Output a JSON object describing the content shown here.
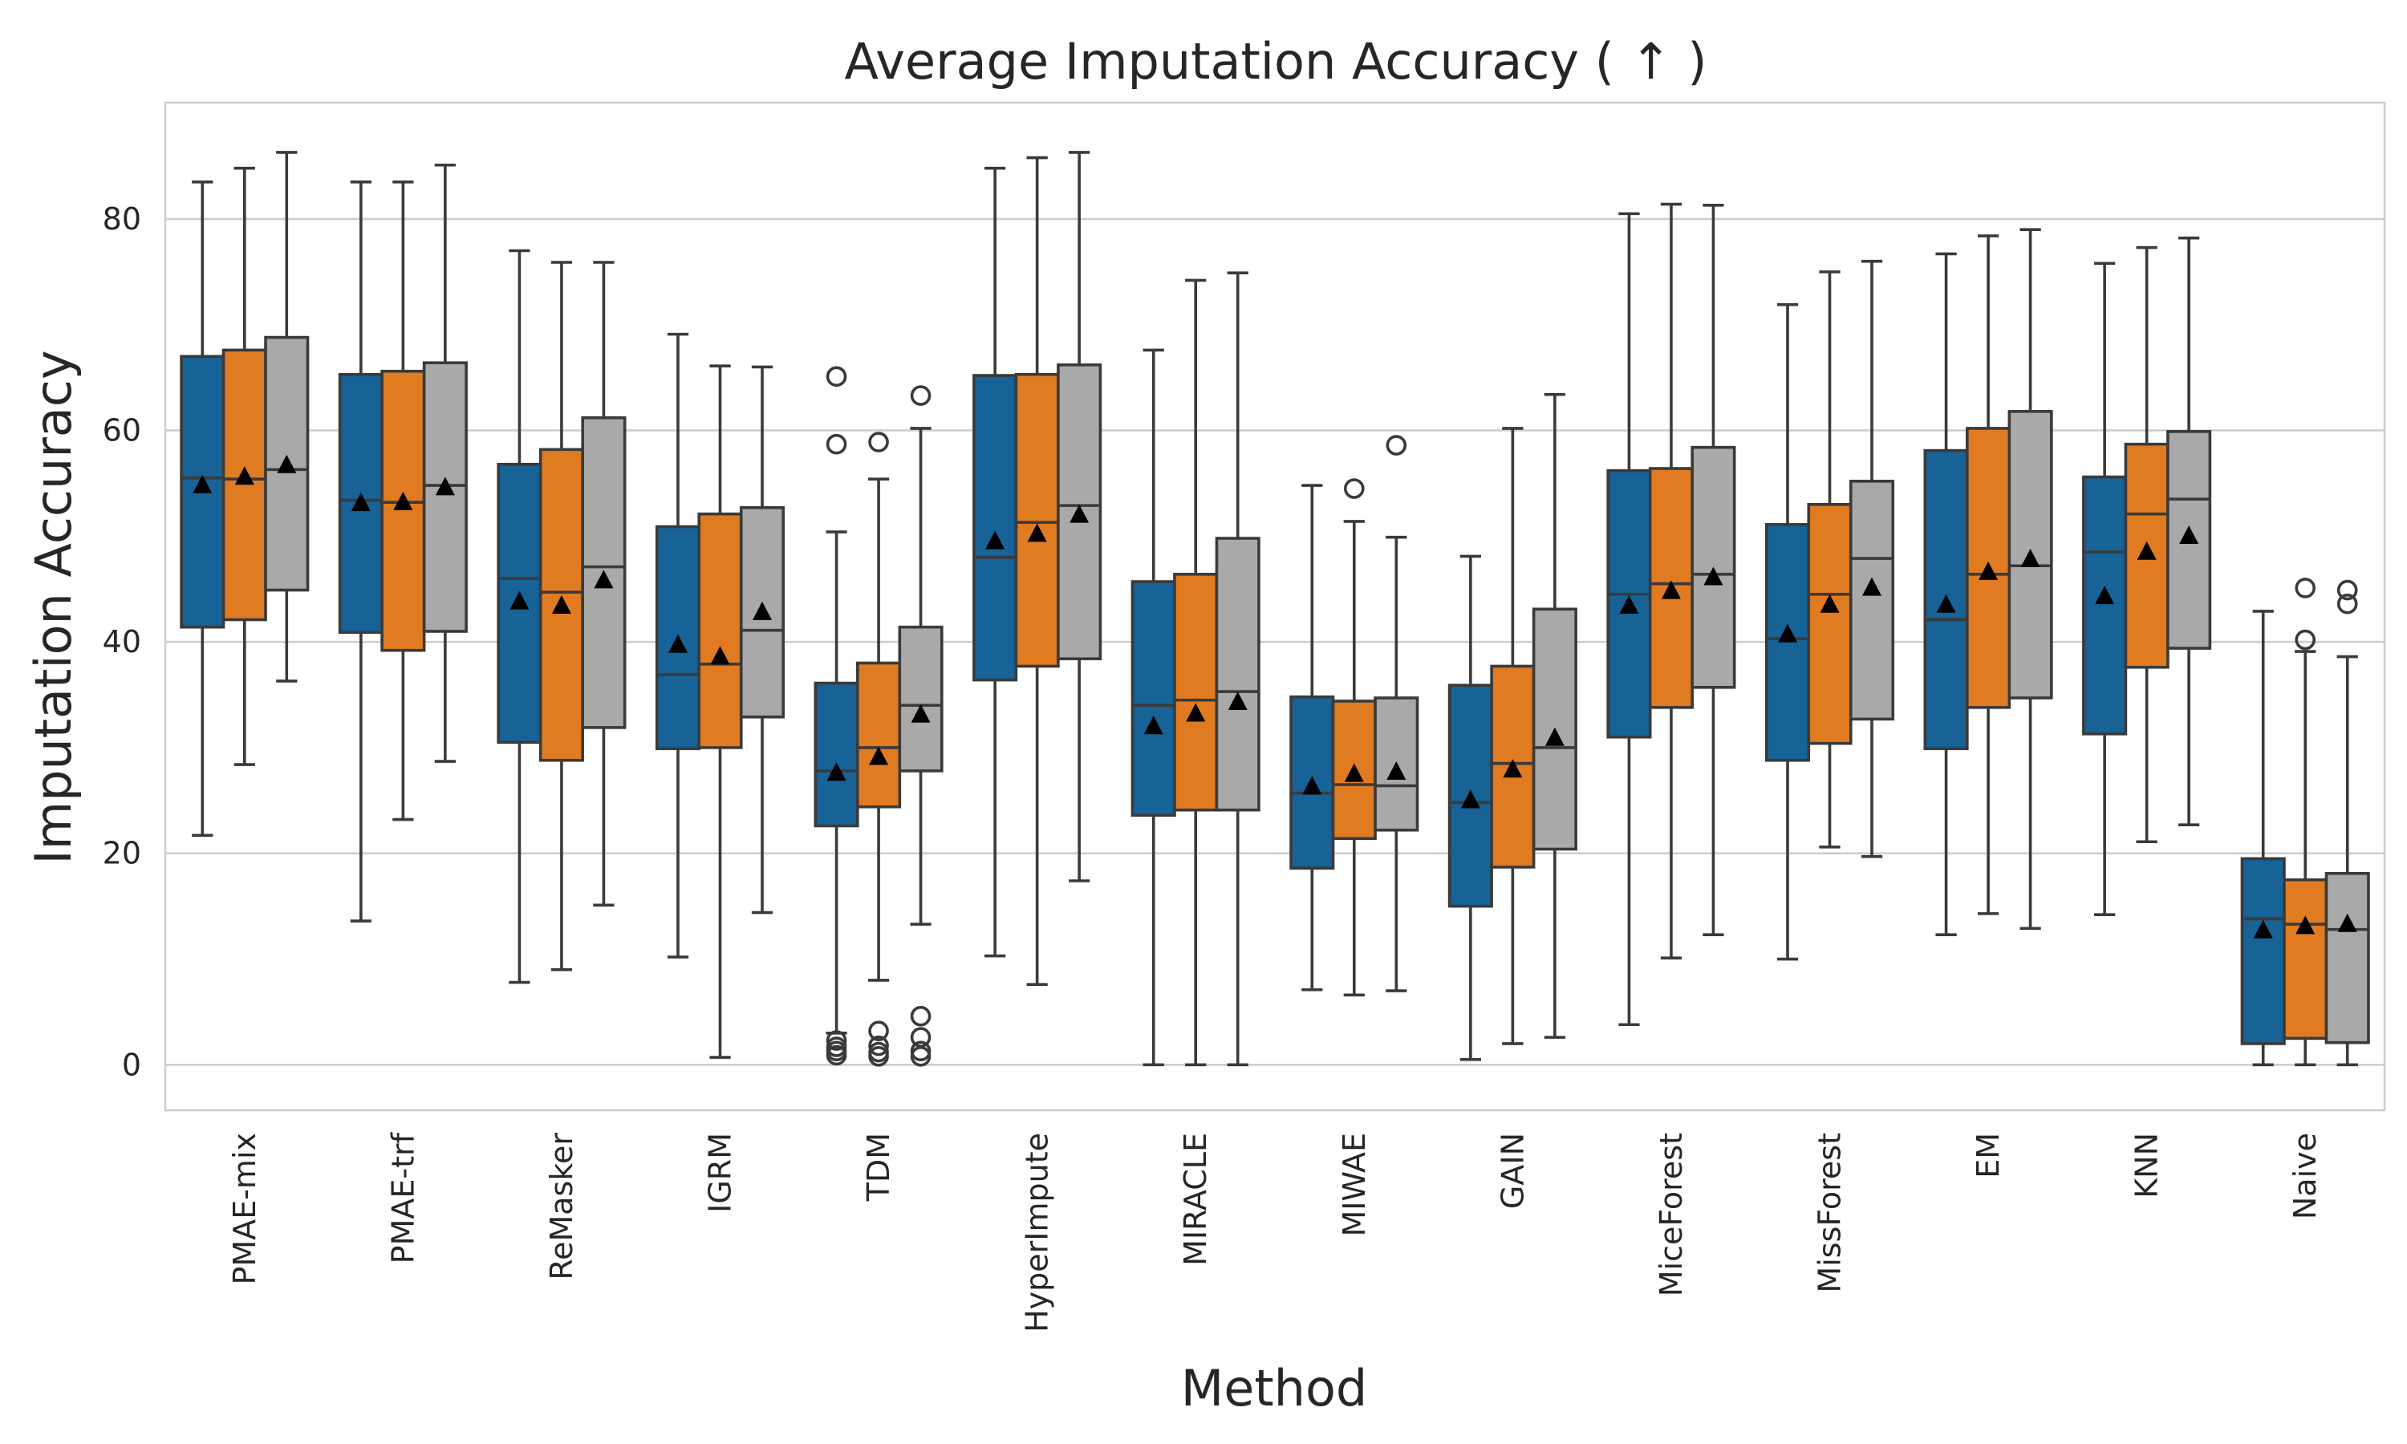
{
  "chart_data": {
    "type": "box",
    "title": "Average Imputation Accuracy ( ↑ )",
    "xlabel": "Method",
    "ylabel": "Imputation Accuracy",
    "ylim": [
      -4.3,
      91
    ],
    "yticks": [
      0,
      20,
      40,
      60,
      80
    ],
    "grid": true,
    "legend": "none",
    "series_colors": [
      "#176296",
      "#e07b22",
      "#a9a9a9"
    ],
    "categories": [
      "PMAE-mix",
      "PMAE-trf",
      "ReMasker",
      "IGRM",
      "TDM",
      "HyperImpute",
      "MIRACLE",
      "MIWAE",
      "GAIN",
      "MiceForest",
      "MissForest",
      "EM",
      "KNN",
      "Naive"
    ],
    "groups": [
      {
        "label": "PMAE-mix",
        "boxes": [
          {
            "whislo": 21.7,
            "q1": 41.4,
            "med": 55.5,
            "q3": 67.0,
            "whishi": 83.5,
            "mean": 54.9,
            "fliers": []
          },
          {
            "whislo": 28.4,
            "q1": 42.1,
            "med": 55.4,
            "q3": 67.6,
            "whishi": 84.8,
            "mean": 55.7,
            "fliers": []
          },
          {
            "whislo": 36.3,
            "q1": 44.9,
            "med": 56.3,
            "q3": 68.8,
            "whishi": 86.3,
            "mean": 56.8,
            "fliers": []
          }
        ]
      },
      {
        "label": "PMAE-trf",
        "boxes": [
          {
            "whislo": 13.6,
            "q1": 40.9,
            "med": 53.4,
            "q3": 65.3,
            "whishi": 83.5,
            "mean": 53.2,
            "fliers": []
          },
          {
            "whislo": 23.2,
            "q1": 39.2,
            "med": 53.2,
            "q3": 65.6,
            "whishi": 83.5,
            "mean": 53.3,
            "fliers": []
          },
          {
            "whislo": 28.7,
            "q1": 41.0,
            "med": 54.8,
            "q3": 66.4,
            "whishi": 85.1,
            "mean": 54.7,
            "fliers": []
          }
        ]
      },
      {
        "label": "ReMasker",
        "boxes": [
          {
            "whislo": 7.8,
            "q1": 30.5,
            "med": 46.0,
            "q3": 56.8,
            "whishi": 77.0,
            "mean": 43.9,
            "fliers": []
          },
          {
            "whislo": 9.0,
            "q1": 28.8,
            "med": 44.7,
            "q3": 58.2,
            "whishi": 75.9,
            "mean": 43.5,
            "fliers": []
          },
          {
            "whislo": 15.1,
            "q1": 31.9,
            "med": 47.1,
            "q3": 61.2,
            "whishi": 75.9,
            "mean": 45.9,
            "fliers": []
          }
        ]
      },
      {
        "label": "IGRM",
        "boxes": [
          {
            "whislo": 10.2,
            "q1": 29.9,
            "med": 36.9,
            "q3": 50.9,
            "whishi": 69.1,
            "mean": 39.8,
            "fliers": []
          },
          {
            "whislo": 0.7,
            "q1": 30.0,
            "med": 37.9,
            "q3": 52.1,
            "whishi": 66.1,
            "mean": 38.7,
            "fliers": []
          },
          {
            "whislo": 14.4,
            "q1": 32.9,
            "med": 41.1,
            "q3": 52.7,
            "whishi": 66.0,
            "mean": 42.9,
            "fliers": []
          }
        ]
      },
      {
        "label": "TDM",
        "boxes": [
          {
            "whislo": 3.0,
            "q1": 22.6,
            "med": 27.8,
            "q3": 36.1,
            "whishi": 50.4,
            "mean": 27.7,
            "fliers": [
              65.1,
              58.7,
              2.3,
              1.7,
              1.3,
              0.9
            ]
          },
          {
            "whislo": 8.0,
            "q1": 24.4,
            "med": 30.0,
            "q3": 38.0,
            "whishi": 55.4,
            "mean": 29.2,
            "fliers": [
              58.9,
              3.2,
              1.8,
              1.2,
              0.8
            ]
          },
          {
            "whislo": 13.3,
            "q1": 27.8,
            "med": 34.0,
            "q3": 41.4,
            "whishi": 60.2,
            "mean": 33.2,
            "fliers": [
              63.3,
              4.6,
              2.6,
              1.3,
              0.8
            ]
          }
        ]
      },
      {
        "label": "HyperImpute",
        "boxes": [
          {
            "whislo": 10.3,
            "q1": 36.4,
            "med": 48.0,
            "q3": 65.2,
            "whishi": 84.8,
            "mean": 49.6,
            "fliers": []
          },
          {
            "whislo": 7.6,
            "q1": 37.7,
            "med": 51.3,
            "q3": 65.3,
            "whishi": 85.8,
            "mean": 50.3,
            "fliers": []
          },
          {
            "whislo": 17.4,
            "q1": 38.4,
            "med": 52.9,
            "q3": 66.2,
            "whishi": 86.3,
            "mean": 52.1,
            "fliers": []
          }
        ]
      },
      {
        "label": "MIRACLE",
        "boxes": [
          {
            "whislo": 0.0,
            "q1": 23.6,
            "med": 34.0,
            "q3": 45.7,
            "whishi": 67.6,
            "mean": 32.1,
            "fliers": []
          },
          {
            "whislo": 0.0,
            "q1": 24.1,
            "med": 34.5,
            "q3": 46.4,
            "whishi": 74.2,
            "mean": 33.3,
            "fliers": []
          },
          {
            "whislo": 0.0,
            "q1": 24.1,
            "med": 35.3,
            "q3": 49.8,
            "whishi": 74.9,
            "mean": 34.4,
            "fliers": []
          }
        ]
      },
      {
        "label": "MIWAE",
        "boxes": [
          {
            "whislo": 7.1,
            "q1": 18.6,
            "med": 25.7,
            "q3": 34.8,
            "whishi": 54.8,
            "mean": 26.4,
            "fliers": []
          },
          {
            "whislo": 6.6,
            "q1": 21.4,
            "med": 26.5,
            "q3": 34.4,
            "whishi": 51.4,
            "mean": 27.6,
            "fliers": [
              54.5
            ]
          },
          {
            "whislo": 7.0,
            "q1": 22.2,
            "med": 26.4,
            "q3": 34.7,
            "whishi": 49.9,
            "mean": 27.8,
            "fliers": [
              58.6
            ]
          }
        ]
      },
      {
        "label": "GAIN",
        "boxes": [
          {
            "whislo": 0.5,
            "q1": 15.0,
            "med": 24.8,
            "q3": 35.9,
            "whishi": 48.1,
            "mean": 25.1,
            "fliers": []
          },
          {
            "whislo": 2.0,
            "q1": 18.7,
            "med": 28.5,
            "q3": 37.7,
            "whishi": 60.2,
            "mean": 28.0,
            "fliers": []
          },
          {
            "whislo": 2.6,
            "q1": 20.4,
            "med": 30.0,
            "q3": 43.1,
            "whishi": 63.4,
            "mean": 31.0,
            "fliers": []
          }
        ]
      },
      {
        "label": "MiceForest",
        "boxes": [
          {
            "whislo": 3.8,
            "q1": 31.0,
            "med": 44.5,
            "q3": 56.2,
            "whishi": 80.5,
            "mean": 43.5,
            "fliers": []
          },
          {
            "whislo": 10.1,
            "q1": 33.8,
            "med": 45.5,
            "q3": 56.4,
            "whishi": 81.4,
            "mean": 44.9,
            "fliers": []
          },
          {
            "whislo": 12.3,
            "q1": 35.7,
            "med": 46.4,
            "q3": 58.4,
            "whishi": 81.3,
            "mean": 46.2,
            "fliers": []
          }
        ]
      },
      {
        "label": "MissForest",
        "boxes": [
          {
            "whislo": 10.0,
            "q1": 28.8,
            "med": 40.3,
            "q3": 51.1,
            "whishi": 71.9,
            "mean": 40.8,
            "fliers": []
          },
          {
            "whislo": 20.6,
            "q1": 30.4,
            "med": 44.5,
            "q3": 53.0,
            "whishi": 75.0,
            "mean": 43.6,
            "fliers": []
          },
          {
            "whislo": 19.7,
            "q1": 32.7,
            "med": 47.9,
            "q3": 55.2,
            "whishi": 76.0,
            "mean": 45.2,
            "fliers": []
          }
        ]
      },
      {
        "label": "EM",
        "boxes": [
          {
            "whislo": 12.3,
            "q1": 29.9,
            "med": 42.1,
            "q3": 58.1,
            "whishi": 76.7,
            "mean": 43.6,
            "fliers": []
          },
          {
            "whislo": 14.3,
            "q1": 33.8,
            "med": 46.4,
            "q3": 60.2,
            "whishi": 78.4,
            "mean": 46.7,
            "fliers": []
          },
          {
            "whislo": 12.9,
            "q1": 34.7,
            "med": 47.2,
            "q3": 61.8,
            "whishi": 79.0,
            "mean": 47.9,
            "fliers": []
          }
        ]
      },
      {
        "label": "KNN",
        "boxes": [
          {
            "whislo": 14.2,
            "q1": 31.3,
            "med": 48.5,
            "q3": 55.6,
            "whishi": 75.8,
            "mean": 44.4,
            "fliers": []
          },
          {
            "whislo": 21.1,
            "q1": 37.6,
            "med": 52.1,
            "q3": 58.7,
            "whishi": 77.3,
            "mean": 48.6,
            "fliers": []
          },
          {
            "whislo": 22.7,
            "q1": 39.4,
            "med": 53.5,
            "q3": 59.9,
            "whishi": 78.2,
            "mean": 50.1,
            "fliers": []
          }
        ]
      },
      {
        "label": "Naive",
        "boxes": [
          {
            "whislo": 0.0,
            "q1": 2.0,
            "med": 13.8,
            "q3": 19.5,
            "whishi": 42.9,
            "mean": 12.8,
            "fliers": []
          },
          {
            "whislo": 0.0,
            "q1": 2.5,
            "med": 13.3,
            "q3": 17.5,
            "whishi": 39.1,
            "mean": 13.2,
            "fliers": [
              45.1,
              40.2
            ]
          },
          {
            "whislo": 0.0,
            "q1": 2.1,
            "med": 12.8,
            "q3": 18.1,
            "whishi": 38.6,
            "mean": 13.4,
            "fliers": [
              44.9,
              43.6
            ]
          }
        ]
      }
    ]
  }
}
